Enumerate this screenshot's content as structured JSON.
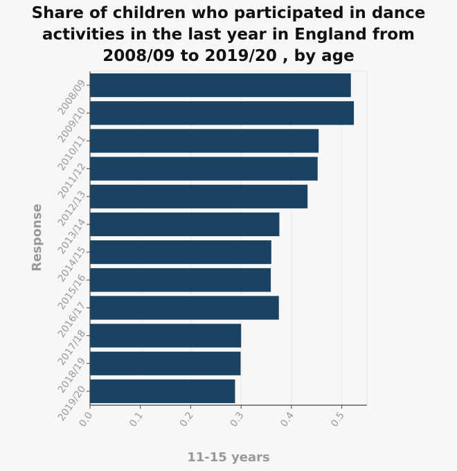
{
  "chart_data": {
    "type": "bar",
    "orientation": "horizontal",
    "title": "Share of children who participated in dance activities in the last year in England from 2008/09 to 2019/20 , by age",
    "title_lines": [
      "Share of children who participated in dance",
      "activities in the last year in England from",
      "2008/09 to 2019/20 , by age"
    ],
    "categories": [
      "2008/09",
      "2009/10",
      "2010/11",
      "2011/12",
      "2012/13",
      "2013/14",
      "2014/15",
      "2015/16",
      "2016/17",
      "2017/18",
      "2018/19",
      "2019/20"
    ],
    "values": [
      0.518,
      0.524,
      0.454,
      0.452,
      0.432,
      0.376,
      0.36,
      0.359,
      0.375,
      0.3,
      0.299,
      0.288
    ],
    "xlabel": "11-15 years",
    "ylabel": "Response",
    "xlim": [
      0,
      0.55
    ],
    "xticks": [
      0,
      0.1,
      0.2,
      0.3,
      0.4,
      0.5
    ],
    "xtick_labels": [
      "0.0",
      "0.1",
      "0.2",
      "0.3",
      "0.4",
      "0.5"
    ],
    "grid": true,
    "bar_color": "#1a4263"
  }
}
